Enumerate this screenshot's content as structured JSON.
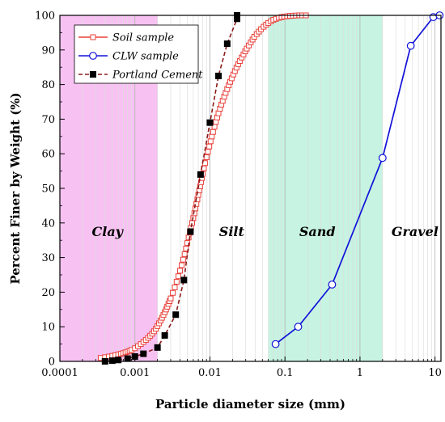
{
  "chart_data": {
    "type": "line",
    "xlabel": "Particle diameter size (mm)",
    "ylabel": "Percent Finer by Weight (%)",
    "x_scale": "log",
    "xlim": [
      0.0001,
      12
    ],
    "ylim": [
      0,
      100
    ],
    "x_ticks": [
      0.0001,
      0.001,
      0.01,
      0.1,
      1,
      10
    ],
    "x_tick_labels": [
      "0.0001",
      "0.001",
      "0.01",
      "0.1",
      "1",
      "10"
    ],
    "y_ticks": [
      0,
      10,
      20,
      30,
      40,
      50,
      60,
      70,
      80,
      90,
      100
    ],
    "y_tick_labels": [
      "0",
      "10",
      "20",
      "30",
      "40",
      "50",
      "60",
      "70",
      "80",
      "90",
      "100"
    ],
    "grid": true,
    "legend_position": "top-left",
    "regions": [
      {
        "label": "Clay",
        "x_range": [
          0.0001,
          0.002
        ],
        "color": "#f7c2f2"
      },
      {
        "label": "Silt",
        "x_range": [
          0.002,
          0.06
        ],
        "color": "#ffffff"
      },
      {
        "label": "Sand",
        "x_range": [
          0.06,
          2
        ],
        "color": "#c6f3e2"
      },
      {
        "label": "Gravel",
        "x_range": [
          2,
          12
        ],
        "color": "#ffffff"
      }
    ],
    "series": [
      {
        "name": "Soil sample",
        "color": "#e8403a",
        "marker": "open-square",
        "line": "solid",
        "x": [
          0.00035,
          0.0004,
          0.00045,
          0.0005,
          0.00055,
          0.0006,
          0.00065,
          0.0007,
          0.00075,
          0.0008,
          0.00085,
          0.0009,
          0.001,
          0.0011,
          0.0012,
          0.0013,
          0.0014,
          0.0015,
          0.0016,
          0.0017,
          0.0018,
          0.0019,
          0.002,
          0.0021,
          0.0022,
          0.0023,
          0.0024,
          0.0025,
          0.0026,
          0.0027,
          0.0028,
          0.0029,
          0.003,
          0.0032,
          0.0034,
          0.0036,
          0.0038,
          0.004,
          0.0042,
          0.0044,
          0.0046,
          0.0048,
          0.005,
          0.0052,
          0.0054,
          0.0056,
          0.0058,
          0.006,
          0.0062,
          0.0064,
          0.0066,
          0.0068,
          0.007,
          0.0072,
          0.0074,
          0.0076,
          0.0078,
          0.008,
          0.0083,
          0.0086,
          0.009,
          0.0094,
          0.0098,
          0.0102,
          0.0106,
          0.011,
          0.0115,
          0.012,
          0.0125,
          0.013,
          0.0136,
          0.0142,
          0.0148,
          0.0155,
          0.0162,
          0.017,
          0.0178,
          0.0186,
          0.0195,
          0.0205,
          0.0215,
          0.0226,
          0.0238,
          0.025,
          0.0265,
          0.028,
          0.0295,
          0.031,
          0.033,
          0.035,
          0.037,
          0.039,
          0.042,
          0.045,
          0.048,
          0.052,
          0.056,
          0.06,
          0.065,
          0.07,
          0.076,
          0.083,
          0.09,
          0.098,
          0.107,
          0.117,
          0.128,
          0.14,
          0.155,
          0.17,
          0.19
        ],
        "y": [
          1.0,
          1.2,
          1.4,
          1.6,
          1.8,
          2.0,
          2.2,
          2.4,
          2.6,
          2.8,
          3.0,
          3.3,
          3.8,
          4.4,
          5.0,
          5.6,
          6.2,
          6.8,
          7.4,
          8.0,
          8.7,
          9.4,
          10.2,
          11.0,
          11.8,
          12.6,
          13.4,
          14.2,
          15.0,
          15.8,
          16.6,
          17.4,
          18.2,
          19.8,
          21.4,
          23.0,
          24.6,
          26.2,
          27.8,
          29.4,
          31.0,
          32.6,
          34.2,
          35.8,
          37.2,
          38.6,
          40.0,
          41.4,
          42.8,
          44.2,
          45.5,
          46.8,
          48.1,
          49.4,
          50.6,
          51.8,
          53.0,
          54.2,
          55.8,
          57.3,
          59.0,
          60.6,
          62.1,
          63.6,
          65.0,
          66.3,
          67.8,
          69.2,
          70.5,
          71.7,
          73.0,
          74.2,
          75.3,
          76.5,
          77.6,
          78.7,
          79.8,
          80.8,
          81.8,
          82.9,
          83.9,
          84.9,
          85.9,
          86.8,
          87.8,
          88.7,
          89.6,
          90.4,
          91.3,
          92.2,
          93.0,
          93.8,
          94.6,
          95.3,
          96.0,
          96.7,
          97.3,
          97.8,
          98.3,
          98.7,
          99.0,
          99.3,
          99.5,
          99.65,
          99.75,
          99.85,
          99.9,
          99.95,
          100.0,
          100.0,
          100.0
        ]
      },
      {
        "name": "CLW sample",
        "color": "#1212d8",
        "marker": "open-circle",
        "line": "solid",
        "x": [
          0.075,
          0.15,
          0.425,
          2.0,
          4.75,
          9.5,
          11.5
        ],
        "y": [
          5.0,
          10.0,
          22.2,
          58.8,
          91.2,
          99.5,
          100.0
        ]
      },
      {
        "name": "Portland Cement",
        "color": "#8b1a1a",
        "marker": "filled-square",
        "line": "dashed",
        "x": [
          0.0004,
          0.0005,
          0.0006,
          0.0008,
          0.001,
          0.0013,
          0.002,
          0.0025,
          0.0035,
          0.0045,
          0.0055,
          0.0075,
          0.01,
          0.013,
          0.017,
          0.023,
          0.023
        ],
        "y": [
          0.0,
          0.2,
          0.4,
          0.8,
          1.4,
          2.2,
          4.0,
          7.5,
          13.5,
          23.5,
          37.5,
          54.0,
          69.0,
          82.5,
          91.8,
          99.0,
          100.0
        ]
      }
    ]
  }
}
